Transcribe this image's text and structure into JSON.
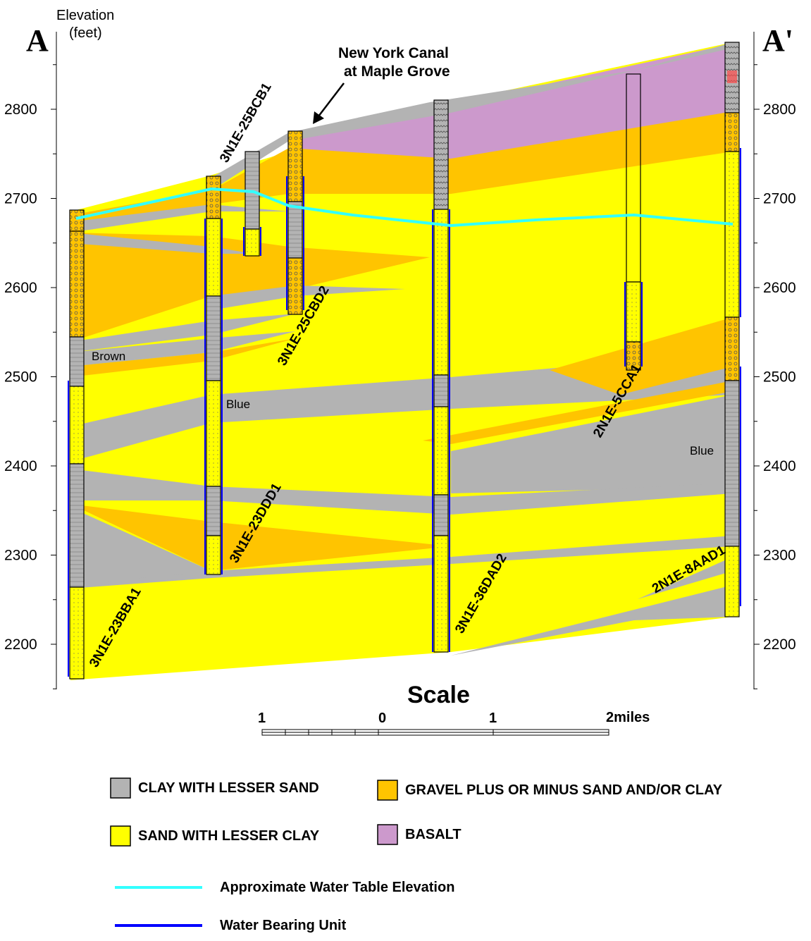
{
  "header": {
    "left_label": "A",
    "right_label": "A'",
    "axis_title_line1": "Elevation",
    "axis_title_line2": "(feet)",
    "canal_line1": "New York Canal",
    "canal_line2": "at Maple Grove"
  },
  "axis": {
    "ticks": [
      "2800",
      "2700",
      "2600",
      "2500",
      "2400",
      "2300",
      "2200"
    ]
  },
  "wells": [
    {
      "name": "3N1E-23BBA1"
    },
    {
      "name": "3N1E-23DDD1"
    },
    {
      "name": "3N1E-25BCB1"
    },
    {
      "name": "3N1E-25CBD2"
    },
    {
      "name": "3N1E-36DAD2"
    },
    {
      "name": "2N1E-5CCA1"
    },
    {
      "name": "2N1E-8AAD1"
    }
  ],
  "annotations": {
    "brown": "Brown",
    "blue_1": "Blue",
    "blue_2": "Blue"
  },
  "scale": {
    "title": "Scale",
    "labels": [
      "1",
      "0",
      "1",
      "2miles"
    ]
  },
  "legend": {
    "clay": "CLAY WITH LESSER SAND",
    "gravel": "GRAVEL PLUS OR MINUS SAND AND/OR CLAY",
    "sand": "SAND WITH LESSER CLAY",
    "basalt": "BASALT",
    "water_table": "Approximate Water Table Elevation",
    "water_bearing": "Water Bearing Unit"
  },
  "colors": {
    "clay": "#b3b3b3",
    "sand": "#ffff00",
    "gravel": "#ffc400",
    "basalt": "#cc99cc",
    "water_table": "#33ffff",
    "water_bearing": "#0000ff"
  }
}
